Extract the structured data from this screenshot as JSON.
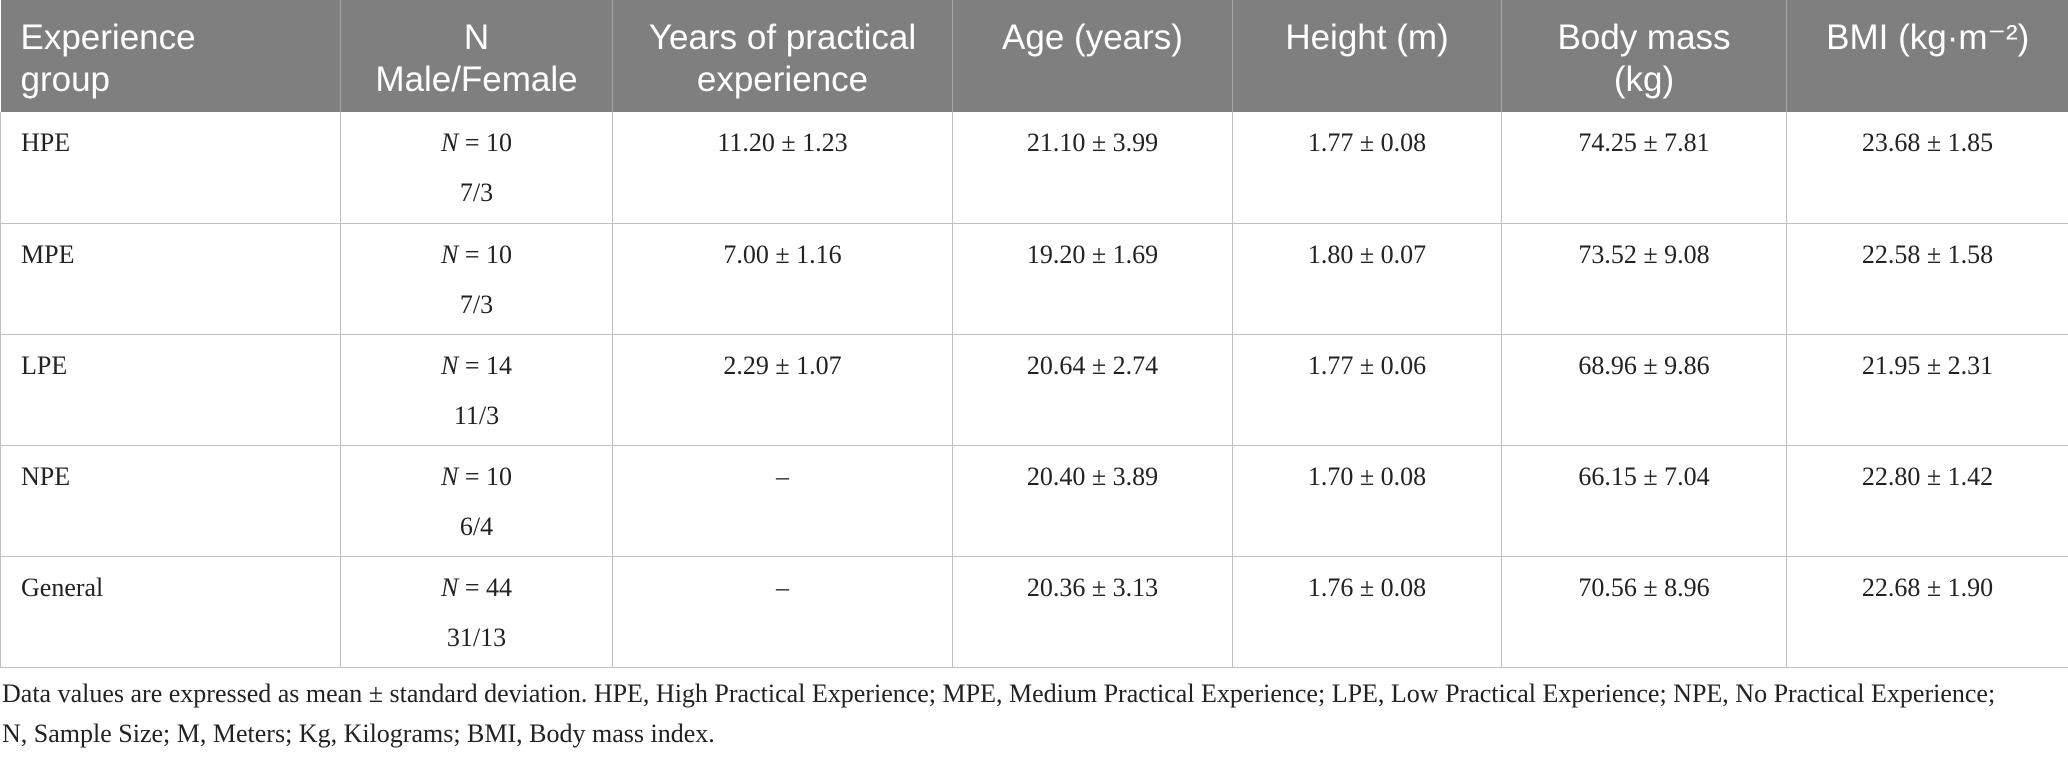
{
  "table": {
    "headers": [
      [
        "Experience",
        "group"
      ],
      [
        "N",
        "Male/Female"
      ],
      [
        "Years of practical",
        "experience"
      ],
      [
        "Age (years)"
      ],
      [
        "Height (m)"
      ],
      [
        "Body mass",
        "(kg)"
      ],
      [
        "BMI (kg·m⁻²)"
      ]
    ],
    "rows": [
      {
        "group": "HPE",
        "n_prefix": "N",
        "n_value": "= 10",
        "sex": "7/3",
        "years": "11.20 ± 1.23",
        "age": "21.10 ± 3.99",
        "height": "1.77 ± 0.08",
        "mass": "74.25 ± 7.81",
        "bmi": "23.68 ± 1.85"
      },
      {
        "group": "MPE",
        "n_prefix": "N",
        "n_value": "= 10",
        "sex": "7/3",
        "years": "7.00 ± 1.16",
        "age": "19.20 ± 1.69",
        "height": "1.80 ± 0.07",
        "mass": "73.52 ± 9.08",
        "bmi": "22.58 ± 1.58"
      },
      {
        "group": "LPE",
        "n_prefix": "N",
        "n_value": "= 14",
        "sex": "11/3",
        "years": "2.29 ± 1.07",
        "age": "20.64 ± 2.74",
        "height": "1.77 ± 0.06",
        "mass": "68.96 ± 9.86",
        "bmi": "21.95 ± 2.31"
      },
      {
        "group": "NPE",
        "n_prefix": "N",
        "n_value": "= 10",
        "sex": "6/4",
        "years": "–",
        "age": "20.40 ± 3.89",
        "height": "1.70 ± 0.08",
        "mass": "66.15 ± 7.04",
        "bmi": "22.80 ± 1.42"
      },
      {
        "group": "General",
        "n_prefix": "N",
        "n_value": "= 44",
        "sex": "31/13",
        "years": "–",
        "age": "20.36 ± 3.13",
        "height": "1.76 ± 0.08",
        "mass": "70.56 ± 8.96",
        "bmi": "22.68 ± 1.90"
      }
    ]
  },
  "footnote": {
    "line1": "Data values are expressed as mean ± standard deviation. HPE, High Practical Experience; MPE, Medium Practical Experience; LPE, Low Practical Experience; NPE, No Practical Experience;",
    "line2": "N, Sample Size; M, Meters; Kg, Kilograms; BMI, Body mass index."
  }
}
